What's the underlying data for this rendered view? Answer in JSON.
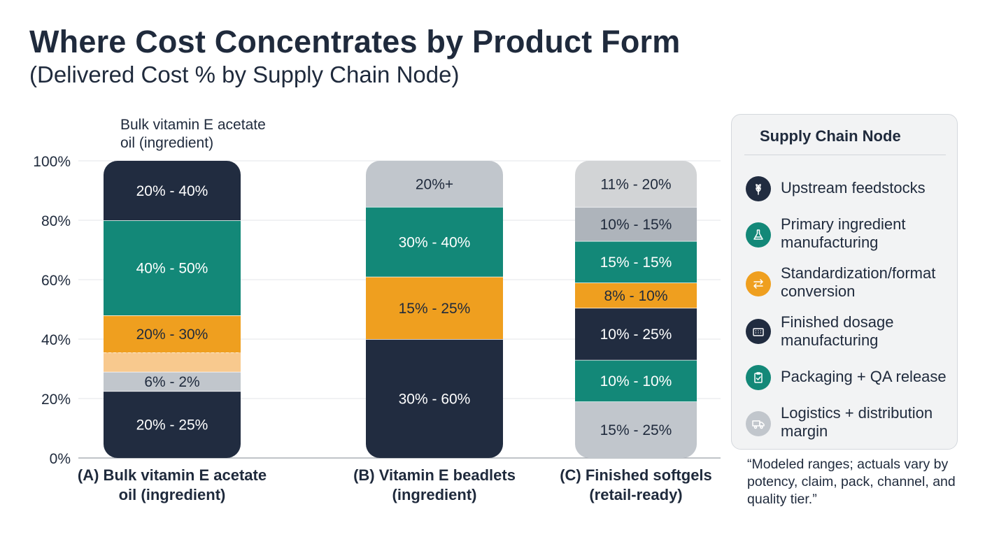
{
  "title": "Where Cost Concentrates by Product Form",
  "subtitle": "(Delivered Cost % by Supply Chain Node)",
  "colors": {
    "upstream": "#212c40",
    "primary": "#138878",
    "standardization": "#ef9f1f",
    "standardization_light": "#f8c98e",
    "finished": "#212c40",
    "packaging": "#138878",
    "logistics": "#c1c6cc",
    "logistics_dark": "#aeb4bb",
    "light_top": "#d2d4d6"
  },
  "chart_data": {
    "type": "bar",
    "stacked": true,
    "ylim": [
      0,
      100
    ],
    "yticks": [
      0,
      20,
      40,
      60,
      80,
      100
    ],
    "ytick_labels": [
      "0%",
      "20%",
      "40%",
      "60%",
      "80%",
      "100%"
    ],
    "grid": true,
    "bar_annotation": {
      "bar": 0,
      "text": "Bulk vitamin E acetate oil (ingredient)"
    },
    "categories": [
      "(A) Bulk vitamin E acetate oil (ingredient)",
      "(B) Vitamin E beadlets (ingredient)",
      "(C) Finished softgels (retail-ready)"
    ],
    "bars": [
      {
        "segments": [
          {
            "node": "Finished dosage manufacturing",
            "from": 0,
            "to": 22.5,
            "label": "20% - 25%",
            "color": "#212c40"
          },
          {
            "node": "Logistics + distribution margin",
            "from": 22.5,
            "to": 29,
            "label": "6% - 2%",
            "color": "#c1c6cc"
          },
          {
            "node": "Standardization/format conversion",
            "from": 29,
            "to": 35.5,
            "label": "",
            "color": "#f8c98e"
          },
          {
            "node": "Standardization/format conversion",
            "from": 35.5,
            "to": 48,
            "label": "20% - 30%",
            "color": "#ef9f1f"
          },
          {
            "node": "Primary ingredient manufacturing",
            "from": 48,
            "to": 80,
            "label": "40% - 50%",
            "color": "#138878"
          },
          {
            "node": "Upstream feedstocks",
            "from": 80,
            "to": 100,
            "label": "20% - 40%",
            "color": "#212c40"
          }
        ]
      },
      {
        "segments": [
          {
            "node": "Finished dosage manufacturing",
            "from": 0,
            "to": 40,
            "label": "30% - 60%",
            "color": "#212c40"
          },
          {
            "node": "Standardization/format conversion",
            "from": 40,
            "to": 61,
            "label": "15% - 25%",
            "color": "#ef9f1f"
          },
          {
            "node": "Primary ingredient manufacturing",
            "from": 61,
            "to": 84.5,
            "label": "30% - 40%",
            "color": "#138878"
          },
          {
            "node": "Logistics + distribution margin",
            "from": 84.5,
            "to": 100,
            "label": "20%+",
            "color": "#c1c6cc"
          }
        ]
      },
      {
        "segments": [
          {
            "node": "Logistics + distribution margin",
            "from": 0,
            "to": 19,
            "label": "15% - 25%",
            "color": "#c1c6cc"
          },
          {
            "node": "Packaging + QA release",
            "from": 19,
            "to": 33,
            "label": "10% - 10%",
            "color": "#138878"
          },
          {
            "node": "Finished dosage manufacturing",
            "from": 33,
            "to": 50.5,
            "label": "10% - 25%",
            "color": "#212c40"
          },
          {
            "node": "Standardization/format conversion",
            "from": 50.5,
            "to": 59,
            "label": "8% - 10%",
            "color": "#ef9f1f"
          },
          {
            "node": "Primary ingredient manufacturing",
            "from": 59,
            "to": 73,
            "label": "15% - 15%",
            "color": "#138878"
          },
          {
            "node": "Logistics + distribution margin",
            "from": 73,
            "to": 84.5,
            "label": "10% - 15%",
            "color": "#aeb4bb"
          },
          {
            "node": "Upstream feedstocks",
            "from": 84.5,
            "to": 100,
            "label": "11% - 20%",
            "color": "#d2d4d6"
          }
        ]
      }
    ]
  },
  "legend": {
    "title": "Supply Chain Node",
    "items": [
      {
        "label": "Upstream feedstocks",
        "icon": "wheat-icon",
        "color": "#212c40"
      },
      {
        "label": "Primary ingredient manufacturing",
        "icon": "flask-icon",
        "color": "#138878"
      },
      {
        "label": "Standardization/format conversion",
        "icon": "arrows-icon",
        "color": "#ef9f1f"
      },
      {
        "label": "Finished dosage manufacturing",
        "icon": "factory-icon",
        "color": "#212c40"
      },
      {
        "label": "Packaging + QA release",
        "icon": "clipboard-icon",
        "color": "#138878"
      },
      {
        "label": "Logistics + distribution margin",
        "icon": "truck-icon",
        "color": "#c1c6cc"
      }
    ]
  },
  "note": "“Modeled ranges; actuals vary by potency, claim, pack, channel, and quality tier.”"
}
